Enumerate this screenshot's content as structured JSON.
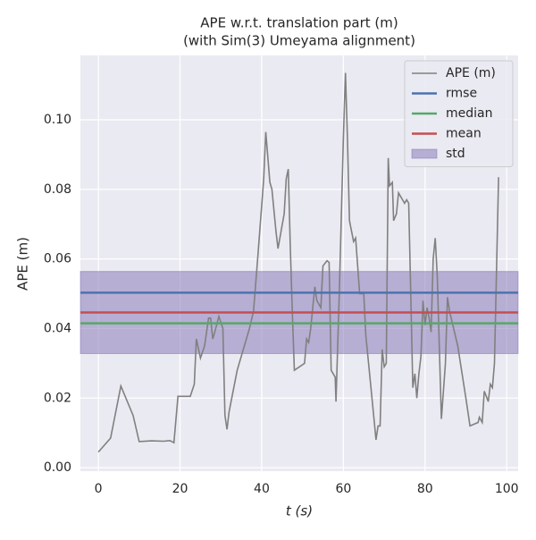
{
  "chart_data": {
    "type": "line",
    "title": "APE w.r.t. translation part (m)",
    "subtitle": "(with Sim(3) Umeyama alignment)",
    "x_label": "t (s)",
    "y_label": "APE (m)",
    "xlim": [
      -4.4,
      102.8
    ],
    "ylim": [
      -0.001,
      0.1185
    ],
    "xticks": [
      0,
      20,
      40,
      60,
      80,
      100
    ],
    "yticks": [
      {
        "value": 0,
        "label": "0.00"
      },
      {
        "value": 0.02,
        "label": "0.02"
      },
      {
        "value": 0.04,
        "label": "0.04"
      },
      {
        "value": 0.06,
        "label": "0.06"
      },
      {
        "value": 0.08,
        "label": "0.08"
      },
      {
        "value": 0.1,
        "label": "0.10"
      }
    ],
    "grid": true,
    "legend": "upper right",
    "series": [
      {
        "name": "APE (m)",
        "color": "#808080",
        "x": [
          0,
          3,
          5.5,
          8.5,
          10,
          13,
          16,
          17.5,
          18.5,
          19.5,
          22.5,
          23.5,
          24,
          25,
          26,
          27,
          27.5,
          28,
          28.5,
          29.5,
          30.5,
          31,
          31.5,
          32,
          34,
          37,
          38,
          39,
          40.5,
          41,
          42,
          42.5,
          43.5,
          44,
          45.5,
          46,
          46.5,
          47,
          47.5,
          48,
          50.5,
          51,
          51.5,
          52,
          53,
          53.5,
          54.5,
          55,
          56,
          56.5,
          57,
          58,
          58.2,
          59,
          60,
          60.5,
          61,
          61.5,
          62.5,
          63,
          64,
          65,
          65.5,
          67,
          68,
          68.5,
          69,
          69.5,
          70,
          70.5,
          71,
          71.3,
          72,
          72.3,
          73,
          73.5,
          75,
          75.5,
          76,
          76.5,
          77,
          77.5,
          78,
          78.5,
          79,
          79.5,
          80,
          80.5,
          81,
          81.5,
          82,
          82.5,
          83,
          84,
          85,
          85.5,
          86,
          88,
          90,
          91,
          93,
          93.3,
          94,
          94.5,
          95.5,
          96,
          96.5,
          97,
          98
        ],
        "values": [
          0.0045,
          0.0085,
          0.0235,
          0.015,
          0.0075,
          0.0077,
          0.0076,
          0.0078,
          0.0072,
          0.0205,
          0.0205,
          0.024,
          0.037,
          0.0315,
          0.035,
          0.043,
          0.043,
          0.037,
          0.039,
          0.0435,
          0.04,
          0.015,
          0.011,
          0.016,
          0.028,
          0.04,
          0.045,
          0.06,
          0.083,
          0.0965,
          0.082,
          0.08,
          0.068,
          0.063,
          0.073,
          0.083,
          0.0858,
          0.064,
          0.045,
          0.028,
          0.03,
          0.037,
          0.036,
          0.04,
          0.052,
          0.048,
          0.046,
          0.058,
          0.0595,
          0.059,
          0.028,
          0.026,
          0.019,
          0.05,
          0.095,
          0.1135,
          0.095,
          0.071,
          0.065,
          0.066,
          0.05,
          0.05,
          0.038,
          0.02,
          0.008,
          0.012,
          0.012,
          0.034,
          0.029,
          0.03,
          0.089,
          0.081,
          0.082,
          0.071,
          0.073,
          0.079,
          0.076,
          0.077,
          0.076,
          0.05,
          0.023,
          0.027,
          0.02,
          0.027,
          0.032,
          0.048,
          0.041,
          0.046,
          0.043,
          0.039,
          0.06,
          0.066,
          0.055,
          0.014,
          0.03,
          0.049,
          0.045,
          0.035,
          0.02,
          0.012,
          0.013,
          0.0145,
          0.013,
          0.022,
          0.019,
          0.024,
          0.023,
          0.03,
          0.0835
        ]
      }
    ],
    "hlines": [
      {
        "name": "rmse",
        "color": "#4c72b0",
        "value": 0.0503
      },
      {
        "name": "median",
        "color": "#55a868",
        "value": 0.0415
      },
      {
        "name": "mean",
        "color": "#c44e52",
        "value": 0.0446
      }
    ],
    "std": {
      "name": "std",
      "color": "#8172b3",
      "value": 0.0118
    }
  }
}
